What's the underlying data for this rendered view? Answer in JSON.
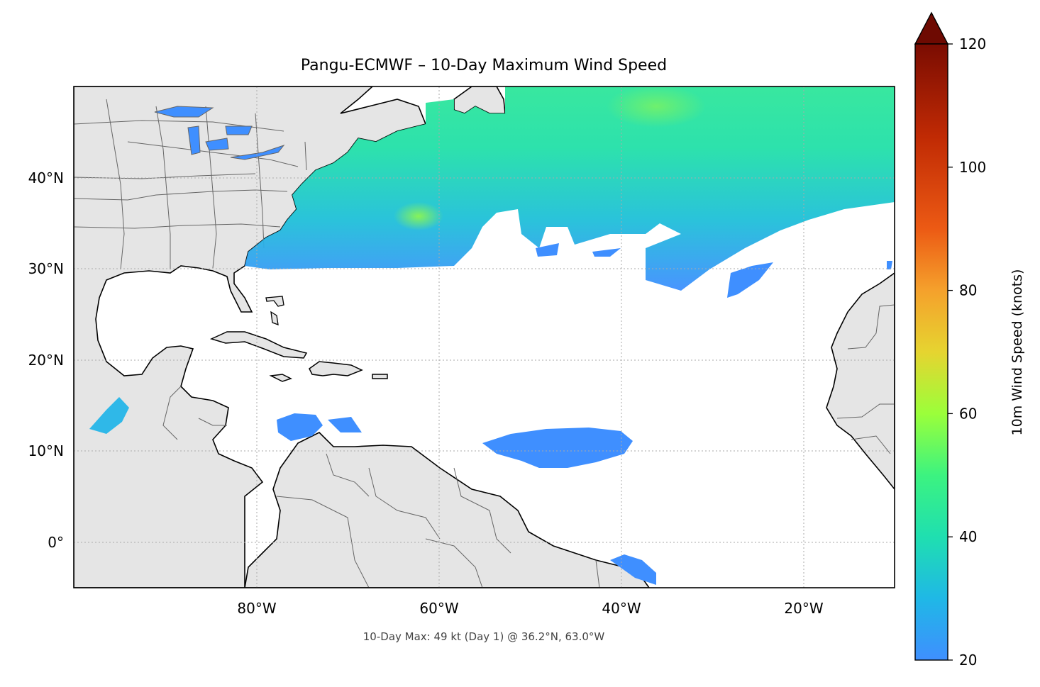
{
  "title": "Pangu-ECMWF – 10-Day Maximum Wind Speed",
  "annotation": "10-Day Max: 49 kt (Day 1) @ 36.2°N, 63.0°W",
  "colorbar": {
    "label": "10m Wind Speed (knots)",
    "ticks": [
      "120",
      "100",
      "80",
      "60",
      "40",
      "20"
    ],
    "values": [
      120,
      100,
      80,
      60,
      40,
      20
    ],
    "range": [
      20,
      120
    ],
    "extend": "max",
    "colors": [
      "#3f8fff",
      "#1fc8d8",
      "#1fee8e",
      "#9bff3a",
      "#e6d430",
      "#f5a12c",
      "#ec5a14",
      "#c02a04",
      "#6e0a02"
    ]
  },
  "map": {
    "lon_ticks": [
      "80°W",
      "60°W",
      "40°W",
      "20°W"
    ],
    "lat_ticks": [
      "40°N",
      "30°N",
      "20°N",
      "10°N",
      "0°"
    ],
    "lon_range": [
      -100,
      -10
    ],
    "lat_range": [
      -5,
      50
    ],
    "land_color": "#e5e5e5",
    "grid": true
  },
  "chart_data": {
    "type": "heatmap",
    "title": "Pangu-ECMWF – 10-Day Maximum Wind Speed",
    "colorbar_label": "10m Wind Speed (knots)",
    "xlim": [
      -100,
      -10
    ],
    "ylim": [
      -5,
      50
    ],
    "max": {
      "value": 49,
      "unit": "kt",
      "day": 1,
      "lat": 36.2,
      "lon": -63.0
    }
  }
}
